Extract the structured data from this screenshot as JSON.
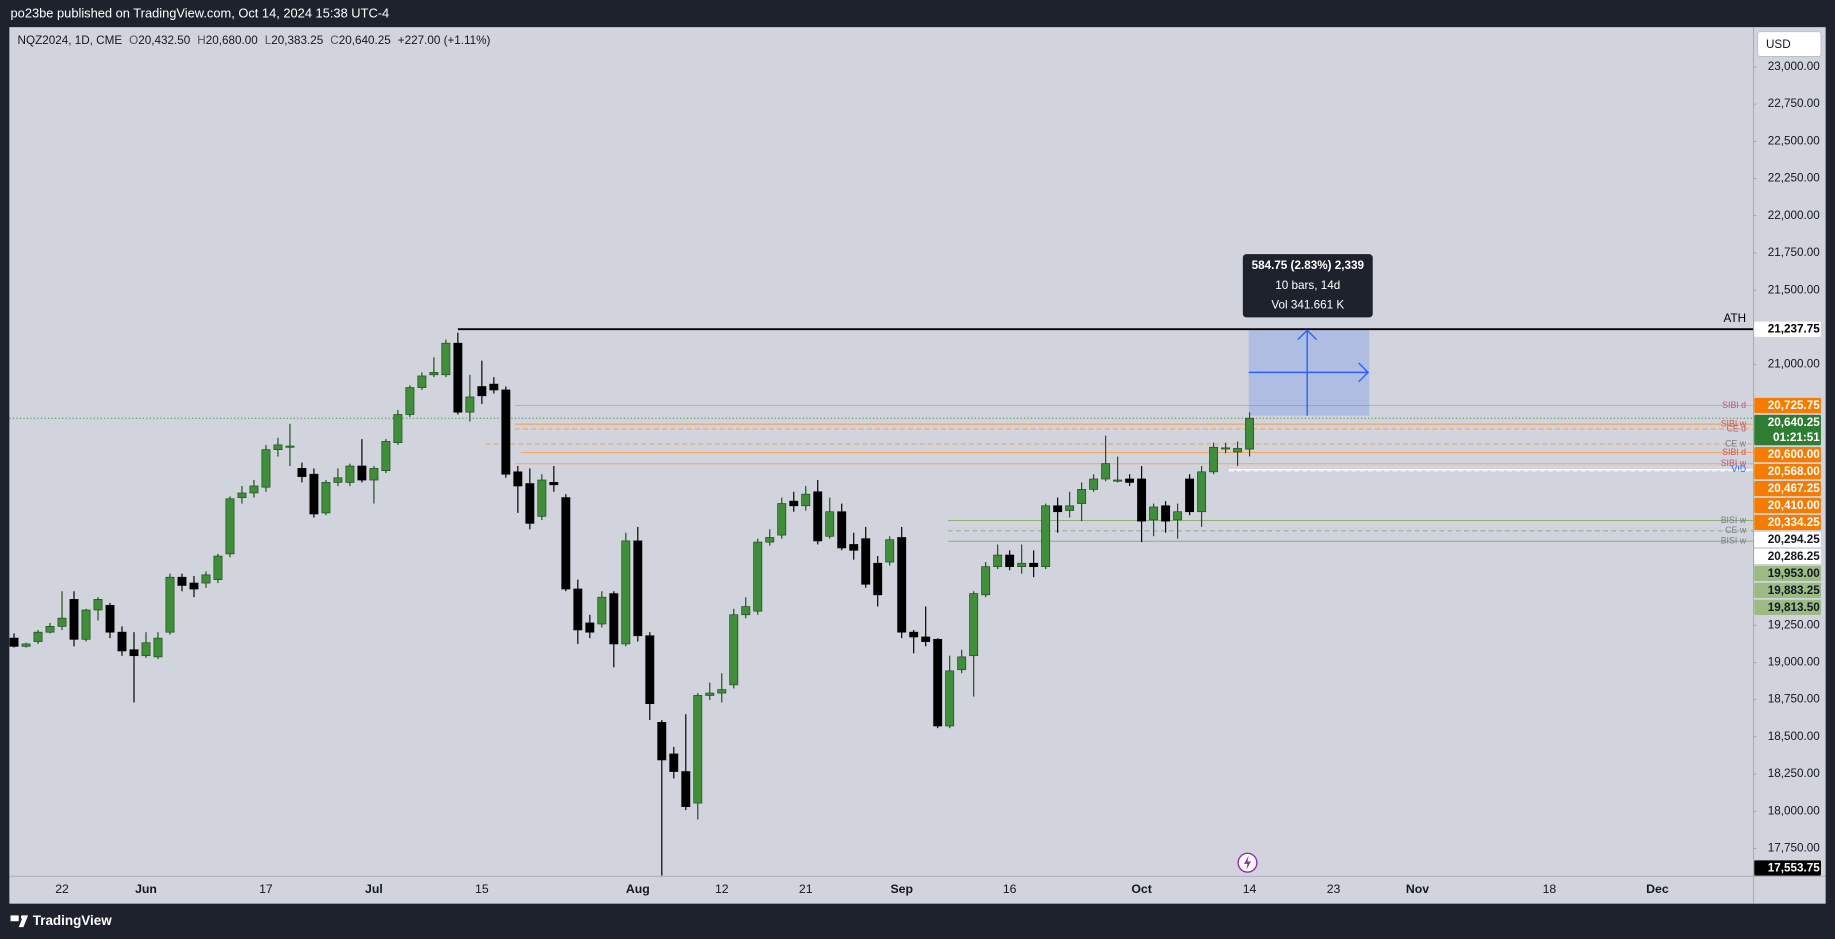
{
  "header": {
    "published": "po23be published on TradingView.com, Oct 14, 2024 15:38 UTC-4"
  },
  "footer": {
    "brand": "TradingView"
  },
  "chart_data": {
    "type": "candlestick",
    "symbol": "NQZ2024, 1D, CME",
    "legend": [
      {
        "key": "O",
        "value": "20,432.50"
      },
      {
        "key": "H",
        "value": "20,680.00"
      },
      {
        "key": "L",
        "value": "20,383.25"
      },
      {
        "key": "C",
        "value": "20,640.25"
      }
    ],
    "change": "+227.00 (+1.11%)",
    "currency": "USD",
    "up_color": "#3f8f3a",
    "down_color": "#000000",
    "categories": [
      null,
      null,
      null,
      null,
      "22",
      null,
      null,
      null,
      null,
      null,
      null,
      "Jun",
      null,
      null,
      null,
      null,
      null,
      null,
      null,
      null,
      null,
      "17",
      null,
      null,
      null,
      null,
      null,
      null,
      null,
      null,
      "Jul",
      null,
      null,
      null,
      null,
      null,
      null,
      null,
      null,
      "15",
      null,
      null,
      null,
      null,
      null,
      null,
      null,
      null,
      null,
      null,
      null,
      null,
      "Aug",
      null,
      null,
      null,
      null,
      null,
      null,
      "12",
      null,
      null,
      null,
      null,
      null,
      null,
      "21",
      null,
      null,
      null,
      null,
      null,
      null,
      null,
      "Sep",
      null,
      null,
      null,
      null,
      null,
      null,
      null,
      null,
      "16",
      null,
      null,
      null,
      null,
      null,
      null,
      null,
      null,
      null,
      null,
      "Oct",
      null,
      null,
      null,
      null,
      null,
      null,
      null,
      null,
      "14",
      null,
      null,
      null,
      null,
      null,
      null,
      "23",
      null,
      null,
      null,
      null,
      null,
      null,
      "Nov",
      null,
      null,
      null,
      null,
      null,
      null,
      null,
      null,
      null,
      null,
      "18",
      null,
      null,
      null,
      null,
      null,
      null,
      null,
      null,
      "Dec",
      null,
      null,
      null,
      null,
      null,
      null,
      null
    ],
    "open": [
      19163,
      19108,
      19140,
      19203,
      19242,
      19423,
      19155,
      19352,
      19383,
      19203,
      19085,
      19045,
      19037,
      19203,
      19572,
      19533,
      19533,
      19556,
      19729,
      20107,
      20138,
      20177,
      20429,
      20445,
      20303,
      20264,
      20004,
      20209,
      20209,
      20319,
      20225,
      20288,
      20476,
      20665,
      20846,
      20932,
      20932,
      21144,
      20681,
      20853,
      20869,
      20830,
      20280,
      20201,
      19981,
      20209,
      20107,
      19493,
      19265,
      19258,
      19462,
      19124,
      19816,
      19179,
      18597,
      18385,
      18267,
      18055,
      18778,
      18794,
      18849,
      19320,
      19344,
      19808,
      19855,
      20083,
      20052,
      20146,
      19847,
      20012,
      19792,
      19831,
      19666,
      19674,
      19839,
      19203,
      19171,
      19155,
      18573,
      18951,
      19045,
      19454,
      19643,
      19721,
      19643,
      19666,
      19643,
      20052,
      20020,
      20067,
      20162,
      20232,
      20217,
      20232,
      20232,
      19957,
      20052,
      19957,
      20232,
      20012,
      20280,
      20437,
      20413,
      20432.5,
      null,
      null,
      null,
      null,
      null,
      null,
      null,
      null,
      null,
      null,
      null,
      null,
      null,
      null,
      null,
      null,
      null,
      null,
      null,
      null,
      null,
      null,
      null,
      null,
      null,
      null,
      null,
      null,
      null,
      null,
      null,
      null,
      null,
      null,
      null,
      null,
      null,
      null,
      null,
      null,
      null
    ],
    "high": [
      19195,
      19132,
      19218,
      19265,
      19478,
      19478,
      19360,
      19438,
      19399,
      19242,
      19203,
      19203,
      19203,
      19596,
      19596,
      19580,
      19611,
      19729,
      20115,
      20185,
      20225,
      20461,
      20508,
      20602,
      20342,
      20303,
      20225,
      20303,
      20335,
      20500,
      20319,
      20500,
      20696,
      20861,
      20948,
      21050,
      21168,
      21215,
      20932,
      21027,
      20916,
      20853,
      20319,
      20303,
      20264,
      20319,
      20130,
      19556,
      19320,
      19478,
      19478,
      19871,
      19910,
      19203,
      18613,
      18432,
      18652,
      18794,
      18865,
      18927,
      19360,
      19438,
      19831,
      19894,
      20107,
      20146,
      20185,
      20225,
      20107,
      20067,
      19871,
      19910,
      19714,
      19847,
      19910,
      19218,
      19375,
      19163,
      19045,
      19085,
      19478,
      19674,
      19792,
      19753,
      19792,
      19753,
      20067,
      20107,
      20146,
      20209,
      20264,
      20523,
      20382,
      20264,
      20319,
      20067,
      20083,
      20067,
      20264,
      20319,
      20476,
      20476,
      20484,
      20680,
      null,
      null,
      null,
      null,
      null,
      null,
      null,
      null,
      null,
      null,
      null,
      null,
      null,
      null,
      null,
      null,
      null,
      null,
      null,
      null,
      null,
      null,
      null,
      null,
      null,
      null,
      null,
      null,
      null,
      null,
      null,
      null,
      null,
      null,
      null,
      null,
      null,
      null,
      null,
      null,
      null
    ],
    "low": [
      19100,
      19100,
      19124,
      19195,
      19218,
      19108,
      19140,
      19281,
      19163,
      19045,
      18731,
      19030,
      19022,
      19187,
      19478,
      19438,
      19501,
      19533,
      19706,
      20067,
      20107,
      20146,
      20382,
      20319,
      20209,
      19973,
      19989,
      20185,
      20185,
      20209,
      20067,
      20272,
      20461,
      20649,
      20830,
      20916,
      20916,
      20665,
      20618,
      20736,
      20806,
      20240,
      20004,
      19894,
      19957,
      20146,
      19478,
      19124,
      19163,
      19234,
      18967,
      19108,
      19140,
      18613,
      17554,
      18220,
      18008,
      17945,
      18747,
      18731,
      18825,
      19297,
      19320,
      19784,
      19831,
      20012,
      20020,
      19792,
      19831,
      19753,
      19690,
      19501,
      19375,
      19651,
      19163,
      19061,
      19108,
      18558,
      18558,
      18927,
      18770,
      19438,
      19627,
      19619,
      19596,
      19572,
      19627,
      19871,
      19973,
      19949,
      20146,
      20217,
      20209,
      20185,
      19808,
      19847,
      19871,
      19831,
      19989,
      19910,
      20264,
      20405,
      20319,
      20383.25,
      null,
      null,
      null,
      null,
      null,
      null,
      null,
      null,
      null,
      null,
      null,
      null,
      null,
      null,
      null,
      null,
      null,
      null,
      null,
      null,
      null,
      null,
      null,
      null,
      null,
      null,
      null,
      null,
      null,
      null,
      null,
      null,
      null,
      null,
      null,
      null,
      null,
      null,
      null,
      null,
      null
    ],
    "close": [
      19108,
      19124,
      19203,
      19242,
      19297,
      19155,
      19352,
      19423,
      19203,
      19077,
      19045,
      19132,
      19163,
      19572,
      19517,
      19493,
      19588,
      19714,
      20099,
      20138,
      20185,
      20429,
      20461,
      20453,
      20248,
      19997,
      20209,
      20240,
      20319,
      20225,
      20303,
      20484,
      20665,
      20846,
      20924,
      20948,
      21144,
      20681,
      20783,
      20791,
      20830,
      20264,
      20185,
      19934,
      20225,
      20193,
      19493,
      19218,
      19203,
      19438,
      19124,
      19816,
      19179,
      18723,
      18345,
      18267,
      18031,
      18778,
      18794,
      18817,
      19320,
      19375,
      19808,
      19839,
      20067,
      20052,
      20130,
      19816,
      20012,
      19769,
      19753,
      19525,
      19454,
      19824,
      19203,
      19171,
      19140,
      18573,
      18943,
      19037,
      19462,
      19643,
      19721,
      19643,
      19666,
      19643,
      20052,
      20012,
      20052,
      20162,
      20232,
      20335,
      20225,
      20209,
      19949,
      20044,
      19949,
      20012,
      20012,
      20280,
      20445,
      20441,
      20437,
      20640.25,
      null,
      null,
      null,
      null,
      null,
      null,
      null,
      null,
      null,
      null,
      null,
      null,
      null,
      null,
      null,
      null,
      null,
      null,
      null,
      null,
      null,
      null,
      null,
      null,
      null,
      null,
      null,
      null,
      null,
      null,
      null,
      null,
      null,
      null,
      null,
      null,
      null,
      null,
      null,
      null,
      null
    ],
    "ylim": [
      17568,
      23267
    ],
    "yticks": [
      {
        "value": 17750,
        "label": "17,750.00"
      },
      {
        "value": 18000,
        "label": "18,000.00"
      },
      {
        "value": 18250,
        "label": "18,250.00"
      },
      {
        "value": 18500,
        "label": "18,500.00"
      },
      {
        "value": 18750,
        "label": "18,750.00"
      },
      {
        "value": 19000,
        "label": "19,000.00"
      },
      {
        "value": 19250,
        "label": "19,250.00"
      },
      {
        "value": 21000,
        "label": "21,000.00"
      },
      {
        "value": 21500,
        "label": "21,500.00"
      },
      {
        "value": 21750,
        "label": "21,750.00"
      },
      {
        "value": 22000,
        "label": "22,000.00"
      },
      {
        "value": 22250,
        "label": "22,250.00"
      },
      {
        "value": 22500,
        "label": "22,500.00"
      },
      {
        "value": 22750,
        "label": "22,750.00"
      },
      {
        "value": 23000,
        "label": "23,000.00"
      }
    ],
    "levels": [
      {
        "name": "ATH",
        "value": 21237.75,
        "price_label": "21,237.75",
        "color": "#000000",
        "text_color": "#000000",
        "label_bg": "#ffffff",
        "label_fg": "#000000"
      },
      {
        "name": "SIBI d",
        "value": 20725.75,
        "price_label": "20,725.75",
        "color": "#f2a55c",
        "text_color": "#c2566e",
        "label_bg": "#f57c00",
        "label_fg": "#ffffff"
      },
      {
        "name": "SIBI w",
        "value": 20600,
        "price_label": "20,600.00",
        "color": "#f2a55c",
        "text_color": "#c2566e",
        "label_bg": "#f57c00",
        "label_fg": "#ffffff"
      },
      {
        "name": "CE d",
        "value": 20568,
        "price_label": "20,568.00",
        "color": "#f2a55c",
        "text_color": "#c2566e",
        "label_bg": "#f57c00",
        "label_fg": "#ffffff",
        "dashed": true
      },
      {
        "name": "CE w",
        "value": 20467.25,
        "price_label": "20,467.25",
        "color": "#f2a55c",
        "text_color": "#787b86",
        "label_bg": "#f57c00",
        "label_fg": "#ffffff",
        "dashed": true
      },
      {
        "name": "SIBI d",
        "value": 20410,
        "price_label": "20,410.00",
        "color": "#f2a55c",
        "text_color": "#c2566e",
        "label_bg": "#f57c00",
        "label_fg": "#ffffff"
      },
      {
        "name": "SIBI w",
        "value": 20334.25,
        "price_label": "20,334.25",
        "color": "#f2a55c",
        "text_color": "#c2566e",
        "label_bg": "#f57c00",
        "label_fg": "#ffffff"
      },
      {
        "name": "VID",
        "value": 20294.25,
        "price_label": "20,294.25",
        "color": "#ffffff",
        "text_color": "#2962ff",
        "label_bg": "#ffffff",
        "label_fg": "#131722"
      },
      {
        "value": 20286.25,
        "price_label": "20,286.25",
        "color": "#ffffff",
        "label_bg": "#ffffff",
        "label_fg": "#131722",
        "dashed": true
      },
      {
        "name": "BISI w",
        "value": 19953,
        "price_label": "19,953.00",
        "color": "#8fae7a",
        "text_color": "#787b86",
        "label_bg": "#9cbb84",
        "label_fg": "#131722"
      },
      {
        "name": "CE w",
        "value": 19883.25,
        "price_label": "19,883.25",
        "color": "#8fae7a",
        "text_color": "#787b86",
        "label_bg": "#9cbb84",
        "label_fg": "#131722",
        "dashed": true
      },
      {
        "name": "BISI w",
        "value": 19813.5,
        "price_label": "19,813.50",
        "color": "#8fae7a",
        "text_color": "#787b86",
        "label_bg": "#9cbb84",
        "label_fg": "#131722"
      }
    ],
    "last_price": {
      "value": 20640.25,
      "label": "20,640.25",
      "countdown": "01:21:51",
      "color": "#2e7d32"
    },
    "low_marker": {
      "value": 17553.75,
      "label": "17,553.75"
    },
    "measure": {
      "lines": [
        "584.75 (2.83%) 2,339",
        "10 bars, 14d",
        "Vol 341.661 K"
      ],
      "color": "#2962ff"
    }
  }
}
